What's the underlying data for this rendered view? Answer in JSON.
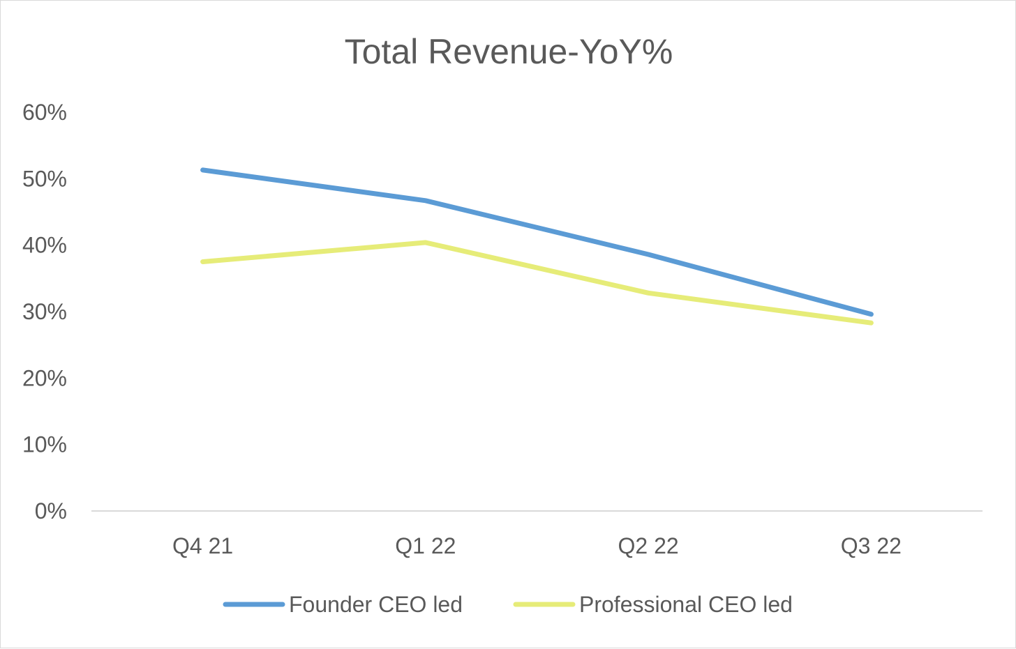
{
  "chart_data": {
    "type": "line",
    "title": "Total Revenue-YoY%",
    "xlabel": "",
    "ylabel": "",
    "categories": [
      "Q4 21",
      "Q1 22",
      "Q2 22",
      "Q3 22"
    ],
    "y_ticks": [
      "0%",
      "10%",
      "20%",
      "30%",
      "40%",
      "50%",
      "60%"
    ],
    "ylim": [
      0,
      0.6
    ],
    "grid": false,
    "legend_position": "bottom",
    "series": [
      {
        "name": "Founder CEO led",
        "color": "#5b9bd5",
        "values": [
          0.513,
          0.467,
          0.386,
          0.296
        ]
      },
      {
        "name": "Professional CEO led",
        "color": "#e6ec78",
        "values": [
          0.375,
          0.404,
          0.328,
          0.283
        ]
      }
    ]
  }
}
